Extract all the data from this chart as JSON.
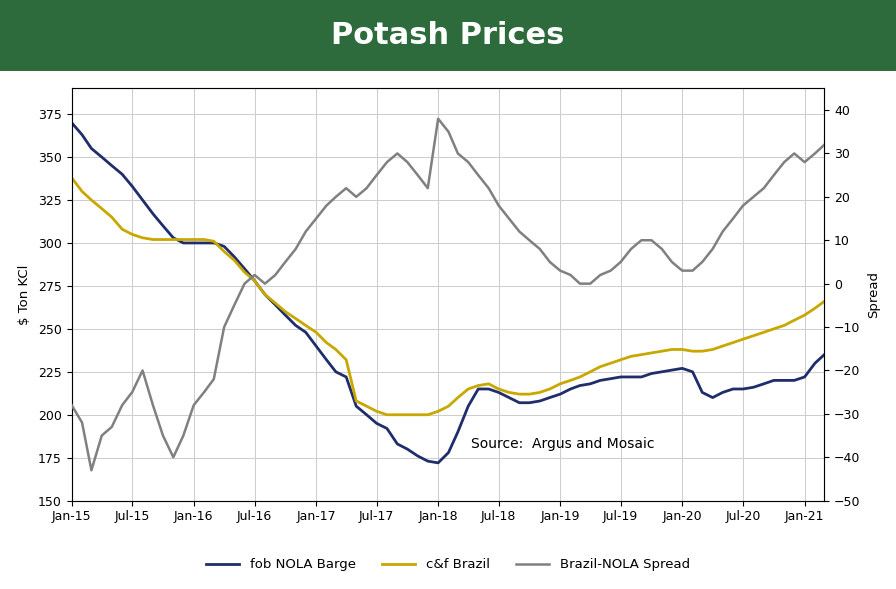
{
  "title": "Potash Prices",
  "title_bg_color": "#2d6b3c",
  "title_text_color": "#ffffff",
  "ylabel_left": "$ Ton KCl",
  "ylabel_right": "Spread",
  "ylim_left": [
    150,
    390
  ],
  "ylim_right": [
    -50,
    45
  ],
  "yticks_left": [
    150,
    175,
    200,
    225,
    250,
    275,
    300,
    325,
    350,
    375
  ],
  "yticks_right": [
    -50.0,
    -40.0,
    -30.0,
    -20.0,
    -10.0,
    0.0,
    10.0,
    20.0,
    30.0,
    40.0
  ],
  "source_text": "Source:  Argus and Mosaic",
  "bg_color": "#ffffff",
  "plot_bg_color": "#ffffff",
  "grid_color": "#cccccc",
  "line_nola_color": "#1f2d6b",
  "line_brazil_color": "#c8a800",
  "line_spread_color": "#808080",
  "legend_labels": [
    "fob NOLA Barge",
    "c&f Brazil",
    "Brazil-NOLA Spread"
  ],
  "nola_barge": [
    370,
    363,
    355,
    350,
    345,
    340,
    333,
    325,
    317,
    310,
    303,
    300,
    300,
    300,
    300,
    298,
    292,
    285,
    278,
    270,
    264,
    258,
    252,
    248,
    240,
    232,
    225,
    222,
    205,
    200,
    195,
    192,
    183,
    180,
    176,
    173,
    172,
    178,
    190,
    205,
    215,
    215,
    213,
    210,
    207,
    207,
    208,
    210,
    212,
    215,
    217,
    218,
    220,
    221,
    222,
    222,
    222,
    224,
    225,
    226,
    227,
    225,
    213,
    210,
    213,
    215,
    215,
    216,
    218,
    220,
    220,
    220,
    222,
    230,
    235
  ],
  "cf_brazil": [
    338,
    330,
    325,
    320,
    315,
    308,
    305,
    303,
    302,
    302,
    302,
    302,
    302,
    302,
    301,
    295,
    290,
    283,
    278,
    270,
    265,
    260,
    256,
    252,
    248,
    242,
    238,
    232,
    208,
    205,
    202,
    200,
    200,
    200,
    200,
    200,
    202,
    205,
    210,
    215,
    217,
    218,
    215,
    213,
    212,
    212,
    213,
    215,
    218,
    220,
    222,
    225,
    228,
    230,
    232,
    234,
    235,
    236,
    237,
    238,
    238,
    237,
    237,
    238,
    240,
    242,
    244,
    246,
    248,
    250,
    252,
    255,
    258,
    262,
    266
  ],
  "spread": [
    -28,
    -32,
    -43,
    -35,
    -33,
    -28,
    -25,
    -20,
    -28,
    -35,
    -40,
    -35,
    -28,
    -25,
    -22,
    -10,
    -5,
    0,
    2,
    0,
    2,
    5,
    8,
    12,
    15,
    18,
    20,
    22,
    20,
    22,
    25,
    28,
    30,
    28,
    25,
    22,
    38,
    35,
    30,
    28,
    25,
    22,
    18,
    15,
    12,
    10,
    8,
    5,
    3,
    2,
    0,
    0,
    2,
    3,
    5,
    8,
    10,
    10,
    8,
    5,
    3,
    3,
    5,
    8,
    12,
    15,
    18,
    20,
    22,
    25,
    28,
    30,
    28,
    30,
    32
  ]
}
